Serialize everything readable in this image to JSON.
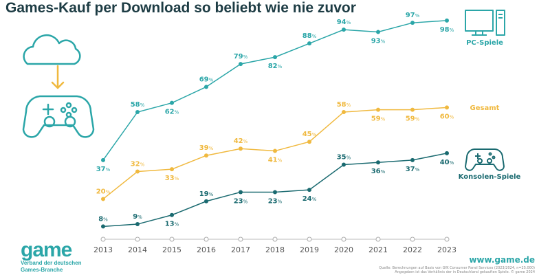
{
  "title": "Games-Kauf per Download so beliebt wie nie zuvor",
  "chart_data": {
    "type": "line",
    "title": "Games-Kauf per Download so beliebt wie nie zuvor",
    "categories": [
      "2013",
      "2014",
      "2015",
      "2016",
      "2017",
      "2018",
      "2019",
      "2020",
      "2021",
      "2022",
      "2023"
    ],
    "unit": "%",
    "ylim": [
      0,
      100
    ],
    "grid": false,
    "legend": "right, inline labels",
    "series": [
      {
        "name": "PC-Spiele",
        "color": "#2ba6a8",
        "values": [
          37,
          58,
          62,
          69,
          79,
          82,
          88,
          94,
          93,
          97,
          98
        ]
      },
      {
        "name": "Gesamt",
        "color": "#f0b93f",
        "values": [
          20,
          32,
          33,
          39,
          42,
          41,
          45,
          58,
          59,
          59,
          60
        ]
      },
      {
        "name": "Konsolen-Spiele",
        "color": "#1a6a70",
        "values": [
          8,
          9,
          13,
          19,
          23,
          23,
          24,
          35,
          36,
          37,
          40
        ]
      }
    ]
  },
  "icons": [
    "cloud-download-icon",
    "gamepad-icon",
    "pc-icon",
    "gamepad-small-icon"
  ],
  "logo": {
    "word": "game",
    "sub1": "Verband der deutschen",
    "sub2": "Games-Branche"
  },
  "site": "www.game.de",
  "source1": "Quelle: Berechnungen auf Basis von GfK Consumer Panel Services (2023/2024, n=25.000)",
  "source2": "Angegeben ist das Verhältnis der in Deutschland gekauften Spiele. © game 2024"
}
